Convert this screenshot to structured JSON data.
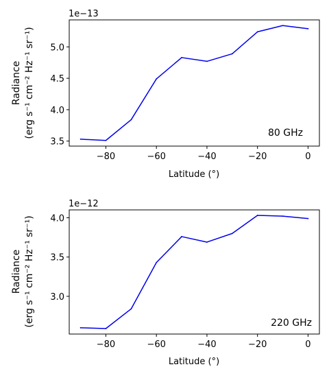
{
  "chart_data": [
    {
      "type": "line",
      "annotation": "80 GHz",
      "offset_text": "1e−13",
      "xlabel": "Latitude (°)",
      "ylabel_line1": "Radiance",
      "ylabel_line2": "(erg s⁻¹ cm⁻² Hz⁻¹ sr⁻¹)",
      "x": [
        -90,
        -80,
        -70,
        -60,
        -50,
        -40,
        -30,
        -20,
        -10,
        0
      ],
      "series": [
        {
          "values": [
            3.53,
            3.51,
            3.84,
            4.49,
            4.83,
            4.77,
            4.89,
            5.24,
            5.34,
            5.29
          ]
        }
      ],
      "xticks": [
        -80,
        -60,
        -40,
        -20,
        0
      ],
      "xtick_labels": [
        "−80",
        "−60",
        "−40",
        "−20",
        "0"
      ],
      "yticks": [
        3.5,
        4.0,
        4.5,
        5.0
      ],
      "ytick_labels": [
        "3.5",
        "4.0",
        "4.5",
        "5.0"
      ],
      "xlim": [
        -94.5,
        4.5
      ],
      "ylim": [
        3.42,
        5.43
      ],
      "color": "#0000ee",
      "grid": false
    },
    {
      "type": "line",
      "annotation": "220 GHz",
      "offset_text": "1e−12",
      "xlabel": "Latitude (°)",
      "ylabel_line1": "Radiance",
      "ylabel_line2": "(erg s⁻¹ cm⁻² Hz⁻¹ sr⁻¹)",
      "x": [
        -90,
        -80,
        -70,
        -60,
        -50,
        -40,
        -30,
        -20,
        -10,
        0
      ],
      "series": [
        {
          "values": [
            2.6,
            2.59,
            2.84,
            3.43,
            3.76,
            3.69,
            3.8,
            4.03,
            4.02,
            3.99
          ]
        }
      ],
      "xticks": [
        -80,
        -60,
        -40,
        -20,
        0
      ],
      "xtick_labels": [
        "−80",
        "−60",
        "−40",
        "−20",
        "0"
      ],
      "yticks": [
        3.0,
        3.5,
        4.0
      ],
      "ytick_labels": [
        "3.0",
        "3.5",
        "4.0"
      ],
      "xlim": [
        -94.5,
        4.5
      ],
      "ylim": [
        2.52,
        4.1
      ],
      "color": "#0000ee",
      "grid": false
    }
  ]
}
